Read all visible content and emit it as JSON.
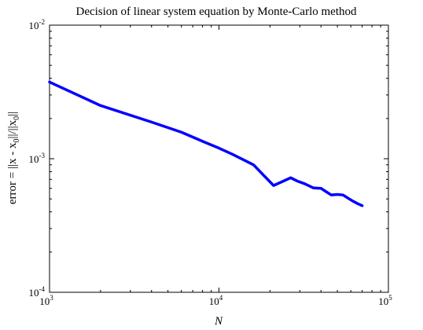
{
  "chart_data": {
    "type": "line",
    "title": "Decision of linear system equation by Monte-Carlo method",
    "xlabel": "N",
    "ylabel_parts": [
      "error = ||x - x",
      "0",
      "||/||x",
      "0",
      "||"
    ],
    "x_scale": "log",
    "y_scale": "log",
    "xlim": [
      1000,
      100000
    ],
    "ylim": [
      0.0001,
      0.01
    ],
    "grid": false,
    "x_ticks": [
      {
        "value": 1000,
        "base": "10",
        "exp": "3"
      },
      {
        "value": 10000,
        "base": "10",
        "exp": "4"
      },
      {
        "value": 100000,
        "base": "10",
        "exp": "5"
      }
    ],
    "y_ticks": [
      {
        "value": 0.0001,
        "base": "10",
        "exp": "-4"
      },
      {
        "value": 0.001,
        "base": "10",
        "exp": "-3"
      },
      {
        "value": 0.01,
        "base": "10",
        "exp": "-2"
      }
    ],
    "series": [
      {
        "color": "#0000ff",
        "x": [
          1000,
          2000,
          4000,
          6000,
          8000,
          10000,
          12000,
          16000,
          21000,
          24000,
          26500,
          29000,
          32000,
          36000,
          40000,
          43000,
          46000,
          50000,
          54000,
          58000,
          62000,
          66000,
          70000
        ],
        "y": [
          0.00375,
          0.0025,
          0.00188,
          0.00158,
          0.00135,
          0.0012,
          0.00108,
          0.0009,
          0.00063,
          0.00068,
          0.00072,
          0.00068,
          0.00065,
          0.000605,
          0.0006,
          0.000565,
          0.000535,
          0.00054,
          0.000535,
          0.000505,
          0.00048,
          0.00046,
          0.000445
        ]
      }
    ]
  }
}
